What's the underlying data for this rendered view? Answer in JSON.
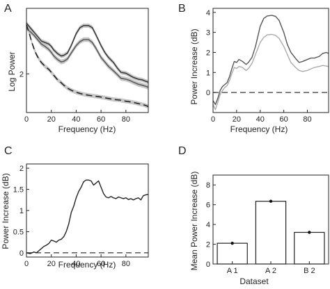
{
  "chart_data": [
    {
      "panel": "A",
      "type": "line",
      "xlabel": "Frequency (Hz)",
      "ylabel": "Log Power",
      "xlim": [
        0,
        98
      ],
      "ylim": [
        0.7,
        4.2
      ],
      "xticks": [
        0,
        20,
        40,
        60,
        80
      ],
      "yticks": [
        2
      ],
      "series": [
        {
          "style": "solid-dark-band",
          "color": "#3a3a3a",
          "band": 0.07,
          "x": [
            0,
            2,
            4,
            6,
            8,
            10,
            12,
            15,
            18,
            20,
            22,
            25,
            28,
            30,
            33,
            36,
            40,
            43,
            46,
            50,
            53,
            56,
            60,
            63,
            66,
            70,
            73,
            76,
            80,
            83,
            86,
            90,
            93,
            96,
            98
          ],
          "y": [
            3.7,
            3.6,
            3.5,
            3.4,
            3.3,
            3.2,
            3.1,
            3.05,
            3.0,
            2.92,
            2.8,
            2.68,
            2.6,
            2.62,
            2.7,
            2.95,
            3.35,
            3.55,
            3.62,
            3.62,
            3.55,
            3.3,
            2.95,
            2.72,
            2.55,
            2.38,
            2.2,
            2.05,
            2.02,
            1.95,
            1.88,
            1.82,
            1.8,
            1.75,
            1.72
          ]
        },
        {
          "style": "solid-gray-band",
          "color": "#5a5a5a",
          "band": 0.08,
          "x": [
            0,
            2,
            4,
            6,
            8,
            10,
            12,
            15,
            18,
            20,
            22,
            25,
            28,
            30,
            33,
            36,
            40,
            43,
            46,
            50,
            53,
            56,
            60,
            63,
            66,
            70,
            73,
            76,
            80,
            83,
            86,
            90,
            93,
            96,
            98
          ],
          "y": [
            3.55,
            3.45,
            3.38,
            3.3,
            3.2,
            3.1,
            3.0,
            2.92,
            2.82,
            2.72,
            2.6,
            2.48,
            2.4,
            2.42,
            2.5,
            2.7,
            2.95,
            3.08,
            3.15,
            3.15,
            3.05,
            2.85,
            2.55,
            2.4,
            2.25,
            2.1,
            1.98,
            1.85,
            1.82,
            1.78,
            1.72,
            1.65,
            1.62,
            1.58,
            1.55
          ]
        },
        {
          "style": "dashed-band",
          "color": "#222222",
          "band": 0.07,
          "x": [
            0,
            2,
            4,
            6,
            8,
            10,
            12,
            15,
            18,
            20,
            22,
            25,
            28,
            30,
            33,
            36,
            40,
            45,
            50,
            55,
            60,
            65,
            70,
            75,
            80,
            85,
            90,
            95,
            98
          ],
          "y": [
            3.65,
            3.4,
            3.1,
            2.85,
            2.65,
            2.5,
            2.38,
            2.25,
            2.15,
            2.05,
            1.95,
            1.8,
            1.7,
            1.62,
            1.52,
            1.45,
            1.38,
            1.32,
            1.28,
            1.25,
            1.22,
            1.18,
            1.14,
            1.12,
            1.08,
            1.05,
            1.0,
            0.95,
            0.9
          ]
        }
      ]
    },
    {
      "panel": "B",
      "type": "line",
      "xlabel": "Frequency (Hz)",
      "ylabel": "Power Increase (dB)",
      "xlim": [
        0,
        98
      ],
      "ylim": [
        -1,
        4.2
      ],
      "xticks": [
        0,
        20,
        40,
        60,
        80
      ],
      "yticks": [
        0,
        1,
        2,
        3,
        4
      ],
      "zero_line": true,
      "series": [
        {
          "style": "solid",
          "color": "#555555",
          "x": [
            0,
            2,
            4,
            6,
            8,
            10,
            12,
            14,
            16,
            18,
            20,
            22,
            25,
            28,
            30,
            33,
            36,
            40,
            43,
            46,
            50,
            53,
            56,
            60,
            63,
            66,
            70,
            73,
            76,
            80,
            83,
            86,
            90,
            93,
            96,
            98
          ],
          "y": [
            -0.4,
            -0.6,
            -0.3,
            0.1,
            0.3,
            0.4,
            0.5,
            0.8,
            1.2,
            1.55,
            1.5,
            1.65,
            1.55,
            1.4,
            1.5,
            1.75,
            2.3,
            3.3,
            3.7,
            3.82,
            3.85,
            3.8,
            3.6,
            3.0,
            2.4,
            2.0,
            1.7,
            1.5,
            1.55,
            1.65,
            1.72,
            1.72,
            1.8,
            1.95,
            2.0,
            1.95
          ]
        },
        {
          "style": "solid",
          "color": "#aaaaaa",
          "x": [
            0,
            2,
            4,
            6,
            8,
            10,
            12,
            14,
            16,
            18,
            20,
            22,
            25,
            28,
            30,
            33,
            36,
            40,
            43,
            46,
            50,
            53,
            56,
            60,
            63,
            66,
            70,
            73,
            76,
            80,
            83,
            86,
            90,
            93,
            96,
            98
          ],
          "y": [
            -0.6,
            -0.85,
            -0.5,
            -0.1,
            0.1,
            0.25,
            0.35,
            0.6,
            0.95,
            1.25,
            1.2,
            1.3,
            1.25,
            1.1,
            1.2,
            1.45,
            1.9,
            2.5,
            2.75,
            2.88,
            2.9,
            2.85,
            2.7,
            2.3,
            1.9,
            1.5,
            1.25,
            1.1,
            1.05,
            1.1,
            1.18,
            1.25,
            1.3,
            1.35,
            1.32,
            1.3
          ]
        }
      ]
    },
    {
      "panel": "C",
      "type": "line",
      "xlabel": "Frequency (Hz)",
      "ylabel": "Power Increase (dB)",
      "xlim": [
        0,
        98
      ],
      "ylim": [
        -0.1,
        2.1
      ],
      "xticks": [
        0,
        20,
        40,
        60,
        80
      ],
      "yticks": [
        0,
        0.5,
        1,
        1.5,
        2
      ],
      "ytick_labels": [
        "0",
        "0.5",
        "1",
        "1.5",
        "2"
      ],
      "zero_line": true,
      "series": [
        {
          "style": "solid",
          "color": "#222222",
          "x": [
            0,
            3,
            6,
            8,
            10,
            12,
            14,
            16,
            18,
            20,
            22,
            24,
            26,
            28,
            30,
            32,
            34,
            36,
            38,
            40,
            42,
            44,
            46,
            48,
            50,
            52,
            54,
            56,
            58,
            60,
            62,
            64,
            66,
            68,
            70,
            72,
            74,
            76,
            78,
            80,
            82,
            84,
            86,
            88,
            90,
            92,
            94,
            96,
            98
          ],
          "y": [
            0,
            -0.02,
            0.02,
            0.0,
            0.05,
            0.1,
            0.15,
            0.18,
            0.22,
            0.3,
            0.28,
            0.25,
            0.3,
            0.32,
            0.38,
            0.5,
            0.68,
            0.95,
            1.1,
            1.3,
            1.45,
            1.55,
            1.68,
            1.72,
            1.72,
            1.7,
            1.6,
            1.65,
            1.7,
            1.55,
            1.4,
            1.32,
            1.3,
            1.33,
            1.3,
            1.28,
            1.32,
            1.3,
            1.28,
            1.3,
            1.26,
            1.28,
            1.25,
            1.28,
            1.3,
            1.25,
            1.35,
            1.37,
            1.38
          ]
        }
      ]
    },
    {
      "panel": "D",
      "type": "bar",
      "xlabel": "Dataset",
      "ylabel": "Mean Power Increase (dB)",
      "categories": [
        "A 1",
        "A 2",
        "B 2"
      ],
      "values": [
        2.1,
        6.35,
        3.2
      ],
      "errors": [
        0.05,
        0.07,
        0.07
      ],
      "ylim": [
        0,
        9
      ],
      "yticks": [
        0,
        2,
        4,
        6,
        8
      ]
    }
  ],
  "panels": [
    {
      "letter": "A",
      "xlabel": "Frequency (Hz)",
      "ylabel": "Log Power",
      "tick_labels": [
        "2"
      ],
      "xtick_labels": [
        "0",
        "20",
        "40",
        "60",
        "80"
      ]
    },
    {
      "letter": "B",
      "xlabel": "Frequency (Hz)",
      "ylabel": "Power Increase (dB)",
      "tick_labels": [
        "0",
        "1",
        "2",
        "3",
        "4"
      ],
      "xtick_labels": [
        "0",
        "20",
        "40",
        "60",
        "80"
      ]
    },
    {
      "letter": "C",
      "xlabel": "Frequency (Hz)",
      "ylabel": "Power Increase (dB)",
      "tick_labels": [
        "0",
        "0.5",
        "1",
        "1.5",
        "2"
      ],
      "xtick_labels": [
        "0",
        "20",
        "40",
        "60",
        "80"
      ]
    },
    {
      "letter": "D",
      "xlabel": "Dataset",
      "ylabel": "Mean Power Increase (dB)",
      "tick_labels": [
        "0",
        "2",
        "4",
        "6",
        "8"
      ],
      "xtick_labels": [
        "A 1",
        "A 2",
        "B 2"
      ]
    }
  ]
}
